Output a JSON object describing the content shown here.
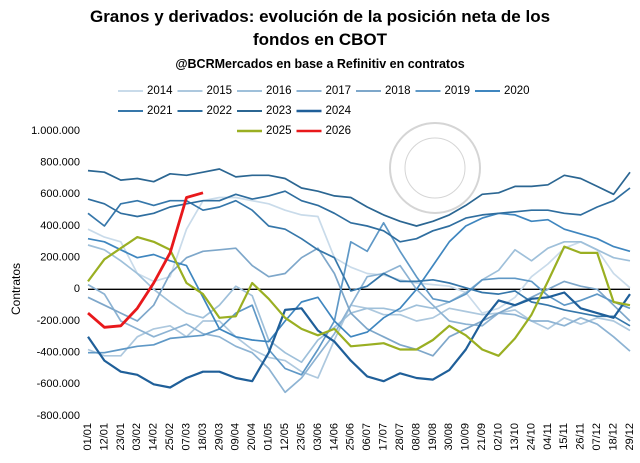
{
  "chart_data": {
    "type": "line",
    "title": [
      "Granos y derivados: evolución de la posición neta de los",
      "fondos en CBOT"
    ],
    "subtitle": "@BCRMercados en base a Refinitiv en contratos",
    "y_label": "Contratos",
    "categories": [
      "01/01",
      "12/01",
      "23/01",
      "03/02",
      "14/02",
      "25/02",
      "07/03",
      "18/03",
      "29/03",
      "09/04",
      "20/04",
      "01/05",
      "12/05",
      "23/05",
      "03/06",
      "14/06",
      "25/06",
      "06/07",
      "17/07",
      "28/07",
      "08/08",
      "19/08",
      "30/08",
      "10/09",
      "21/09",
      "02/10",
      "13/10",
      "24/10",
      "04/11",
      "15/11",
      "26/11",
      "07/12",
      "18/12",
      "29/12"
    ],
    "ylim": [
      -800000,
      1000000
    ],
    "yticks": [
      {
        "value": -800000,
        "label": "-800.000"
      },
      {
        "value": -600000,
        "label": "-600.000"
      },
      {
        "value": -400000,
        "label": "-400.000"
      },
      {
        "value": -200000,
        "label": "-200.000"
      },
      0,
      {
        "value": 200000,
        "label": "200.000"
      },
      {
        "value": 400000,
        "label": "400.000"
      },
      {
        "value": 600000,
        "label": "600.000"
      },
      {
        "value": 800000,
        "label": "800.000"
      },
      {
        "value": 1000000,
        "label": "1.000.000"
      }
    ],
    "series": [
      {
        "name": "2014",
        "color": "#c9dbea",
        "values": [
          380000,
          330000,
          300000,
          100000,
          50000,
          80000,
          380000,
          560000,
          580000,
          580000,
          560000,
          540000,
          500000,
          470000,
          460000,
          200000,
          140000,
          100000,
          90000,
          60000,
          40000,
          30000,
          20000,
          -20000,
          -150000,
          -120000,
          -50000,
          80000,
          160000,
          260000,
          300000,
          250000,
          100000,
          10000
        ]
      },
      {
        "name": "2015",
        "color": "#adc8de",
        "values": [
          -380000,
          -420000,
          -420000,
          -300000,
          -250000,
          -230000,
          -300000,
          -200000,
          -200000,
          -300000,
          -380000,
          -430000,
          -450000,
          -520000,
          -560000,
          -320000,
          -100000,
          -120000,
          -160000,
          -160000,
          -200000,
          -180000,
          -120000,
          -140000,
          -160000,
          -150000,
          -130000,
          -200000,
          -250000,
          -180000,
          -220000,
          -180000,
          -200000,
          -260000
        ]
      },
      {
        "name": "2016",
        "color": "#9fc0da",
        "values": [
          280000,
          250000,
          180000,
          100000,
          0,
          -80000,
          -150000,
          -180000,
          -100000,
          20000,
          -40000,
          -320000,
          -400000,
          -460000,
          -320000,
          -240000,
          -150000,
          -120000,
          -120000,
          -140000,
          -100000,
          -120000,
          -80000,
          -20000,
          60000,
          120000,
          250000,
          180000,
          260000,
          300000,
          300000,
          250000,
          200000,
          180000
        ]
      },
      {
        "name": "2017",
        "color": "#8db3d3",
        "values": [
          30000,
          -30000,
          -200000,
          -250000,
          -300000,
          -260000,
          -220000,
          -280000,
          -300000,
          -360000,
          -400000,
          -500000,
          -650000,
          -560000,
          -420000,
          -280000,
          -100000,
          80000,
          100000,
          150000,
          0,
          -100000,
          -200000,
          -220000,
          -230000,
          -150000,
          -160000,
          -200000,
          -200000,
          -230000,
          -180000,
          -220000,
          -300000,
          -390000
        ]
      },
      {
        "name": "2018",
        "color": "#7ea7ca",
        "values": [
          -50000,
          -100000,
          -150000,
          -200000,
          -100000,
          100000,
          200000,
          240000,
          250000,
          260000,
          150000,
          80000,
          100000,
          200000,
          260000,
          100000,
          -150000,
          -250000,
          -300000,
          -350000,
          -380000,
          -420000,
          -300000,
          -250000,
          -200000,
          -150000,
          -100000,
          -50000,
          0,
          50000,
          20000,
          0,
          -100000,
          -200000
        ]
      },
      {
        "name": "2019",
        "color": "#5f98c6",
        "values": [
          -400000,
          -400000,
          -380000,
          -360000,
          -350000,
          -310000,
          -300000,
          -290000,
          -250000,
          -150000,
          -100000,
          -380000,
          -500000,
          -540000,
          -380000,
          -200000,
          300000,
          240000,
          420000,
          240000,
          80000,
          -60000,
          -80000,
          -30000,
          60000,
          70000,
          70000,
          50000,
          -40000,
          -100000,
          -70000,
          -30000,
          -80000,
          -120000
        ]
      },
      {
        "name": "2020",
        "color": "#3f86bf",
        "values": [
          320000,
          300000,
          250000,
          200000,
          220000,
          180000,
          150000,
          -50000,
          -250000,
          -300000,
          -320000,
          -330000,
          -200000,
          -80000,
          -50000,
          -200000,
          -300000,
          -270000,
          -180000,
          -120000,
          0,
          150000,
          300000,
          400000,
          450000,
          480000,
          470000,
          430000,
          440000,
          380000,
          350000,
          320000,
          270000,
          240000
        ]
      },
      {
        "name": "2021",
        "color": "#3677aa",
        "values": [
          480000,
          400000,
          540000,
          560000,
          530000,
          560000,
          560000,
          500000,
          520000,
          560000,
          500000,
          400000,
          380000,
          320000,
          250000,
          200000,
          -10000,
          20000,
          100000,
          50000,
          50000,
          60000,
          40000,
          10000,
          -20000,
          -30000,
          -10000,
          -80000,
          -100000,
          -130000,
          -150000,
          -170000,
          -170000,
          -230000
        ]
      },
      {
        "name": "2022",
        "color": "#2f6e9f",
        "values": [
          570000,
          540000,
          480000,
          460000,
          480000,
          520000,
          540000,
          560000,
          560000,
          600000,
          570000,
          590000,
          620000,
          560000,
          530000,
          480000,
          420000,
          400000,
          370000,
          300000,
          320000,
          370000,
          400000,
          450000,
          470000,
          480000,
          490000,
          500000,
          500000,
          480000,
          470000,
          520000,
          560000,
          640000
        ]
      },
      {
        "name": "2023",
        "color": "#2b6692",
        "values": [
          750000,
          740000,
          690000,
          700000,
          680000,
          730000,
          720000,
          740000,
          760000,
          710000,
          720000,
          720000,
          700000,
          640000,
          620000,
          590000,
          580000,
          520000,
          470000,
          430000,
          400000,
          430000,
          470000,
          530000,
          600000,
          610000,
          650000,
          650000,
          660000,
          720000,
          700000,
          650000,
          600000,
          740000
        ]
      },
      {
        "name": "2024",
        "color": "#1f5f99",
        "values": [
          -300000,
          -450000,
          -520000,
          -540000,
          -600000,
          -620000,
          -560000,
          -520000,
          -520000,
          -560000,
          -580000,
          -400000,
          -130000,
          -120000,
          -260000,
          -330000,
          -450000,
          -550000,
          -580000,
          -530000,
          -560000,
          -570000,
          -510000,
          -380000,
          -200000,
          -70000,
          -100000,
          -60000,
          -50000,
          -20000,
          -120000,
          -150000,
          -180000,
          -30000
        ]
      },
      {
        "name": "2025",
        "color": "#9aaf22",
        "values": [
          50000,
          190000,
          260000,
          330000,
          300000,
          250000,
          40000,
          -30000,
          -180000,
          -170000,
          40000,
          -60000,
          -180000,
          -250000,
          -290000,
          -250000,
          -360000,
          -350000,
          -340000,
          -380000,
          -380000,
          -320000,
          -230000,
          -290000,
          -380000,
          -420000,
          -310000,
          -160000,
          50000,
          270000,
          230000,
          230000,
          -80000,
          -100000
        ]
      },
      {
        "name": "2026",
        "color": "#e8181b",
        "values": [
          -150000,
          -240000,
          -230000,
          -120000,
          40000,
          230000,
          580000,
          610000,
          null,
          null,
          null,
          null,
          null,
          null,
          null,
          null,
          null,
          null,
          null,
          null,
          null,
          null,
          null,
          null,
          null,
          null,
          null,
          null,
          null,
          null,
          null,
          null,
          null,
          null
        ]
      }
    ]
  }
}
